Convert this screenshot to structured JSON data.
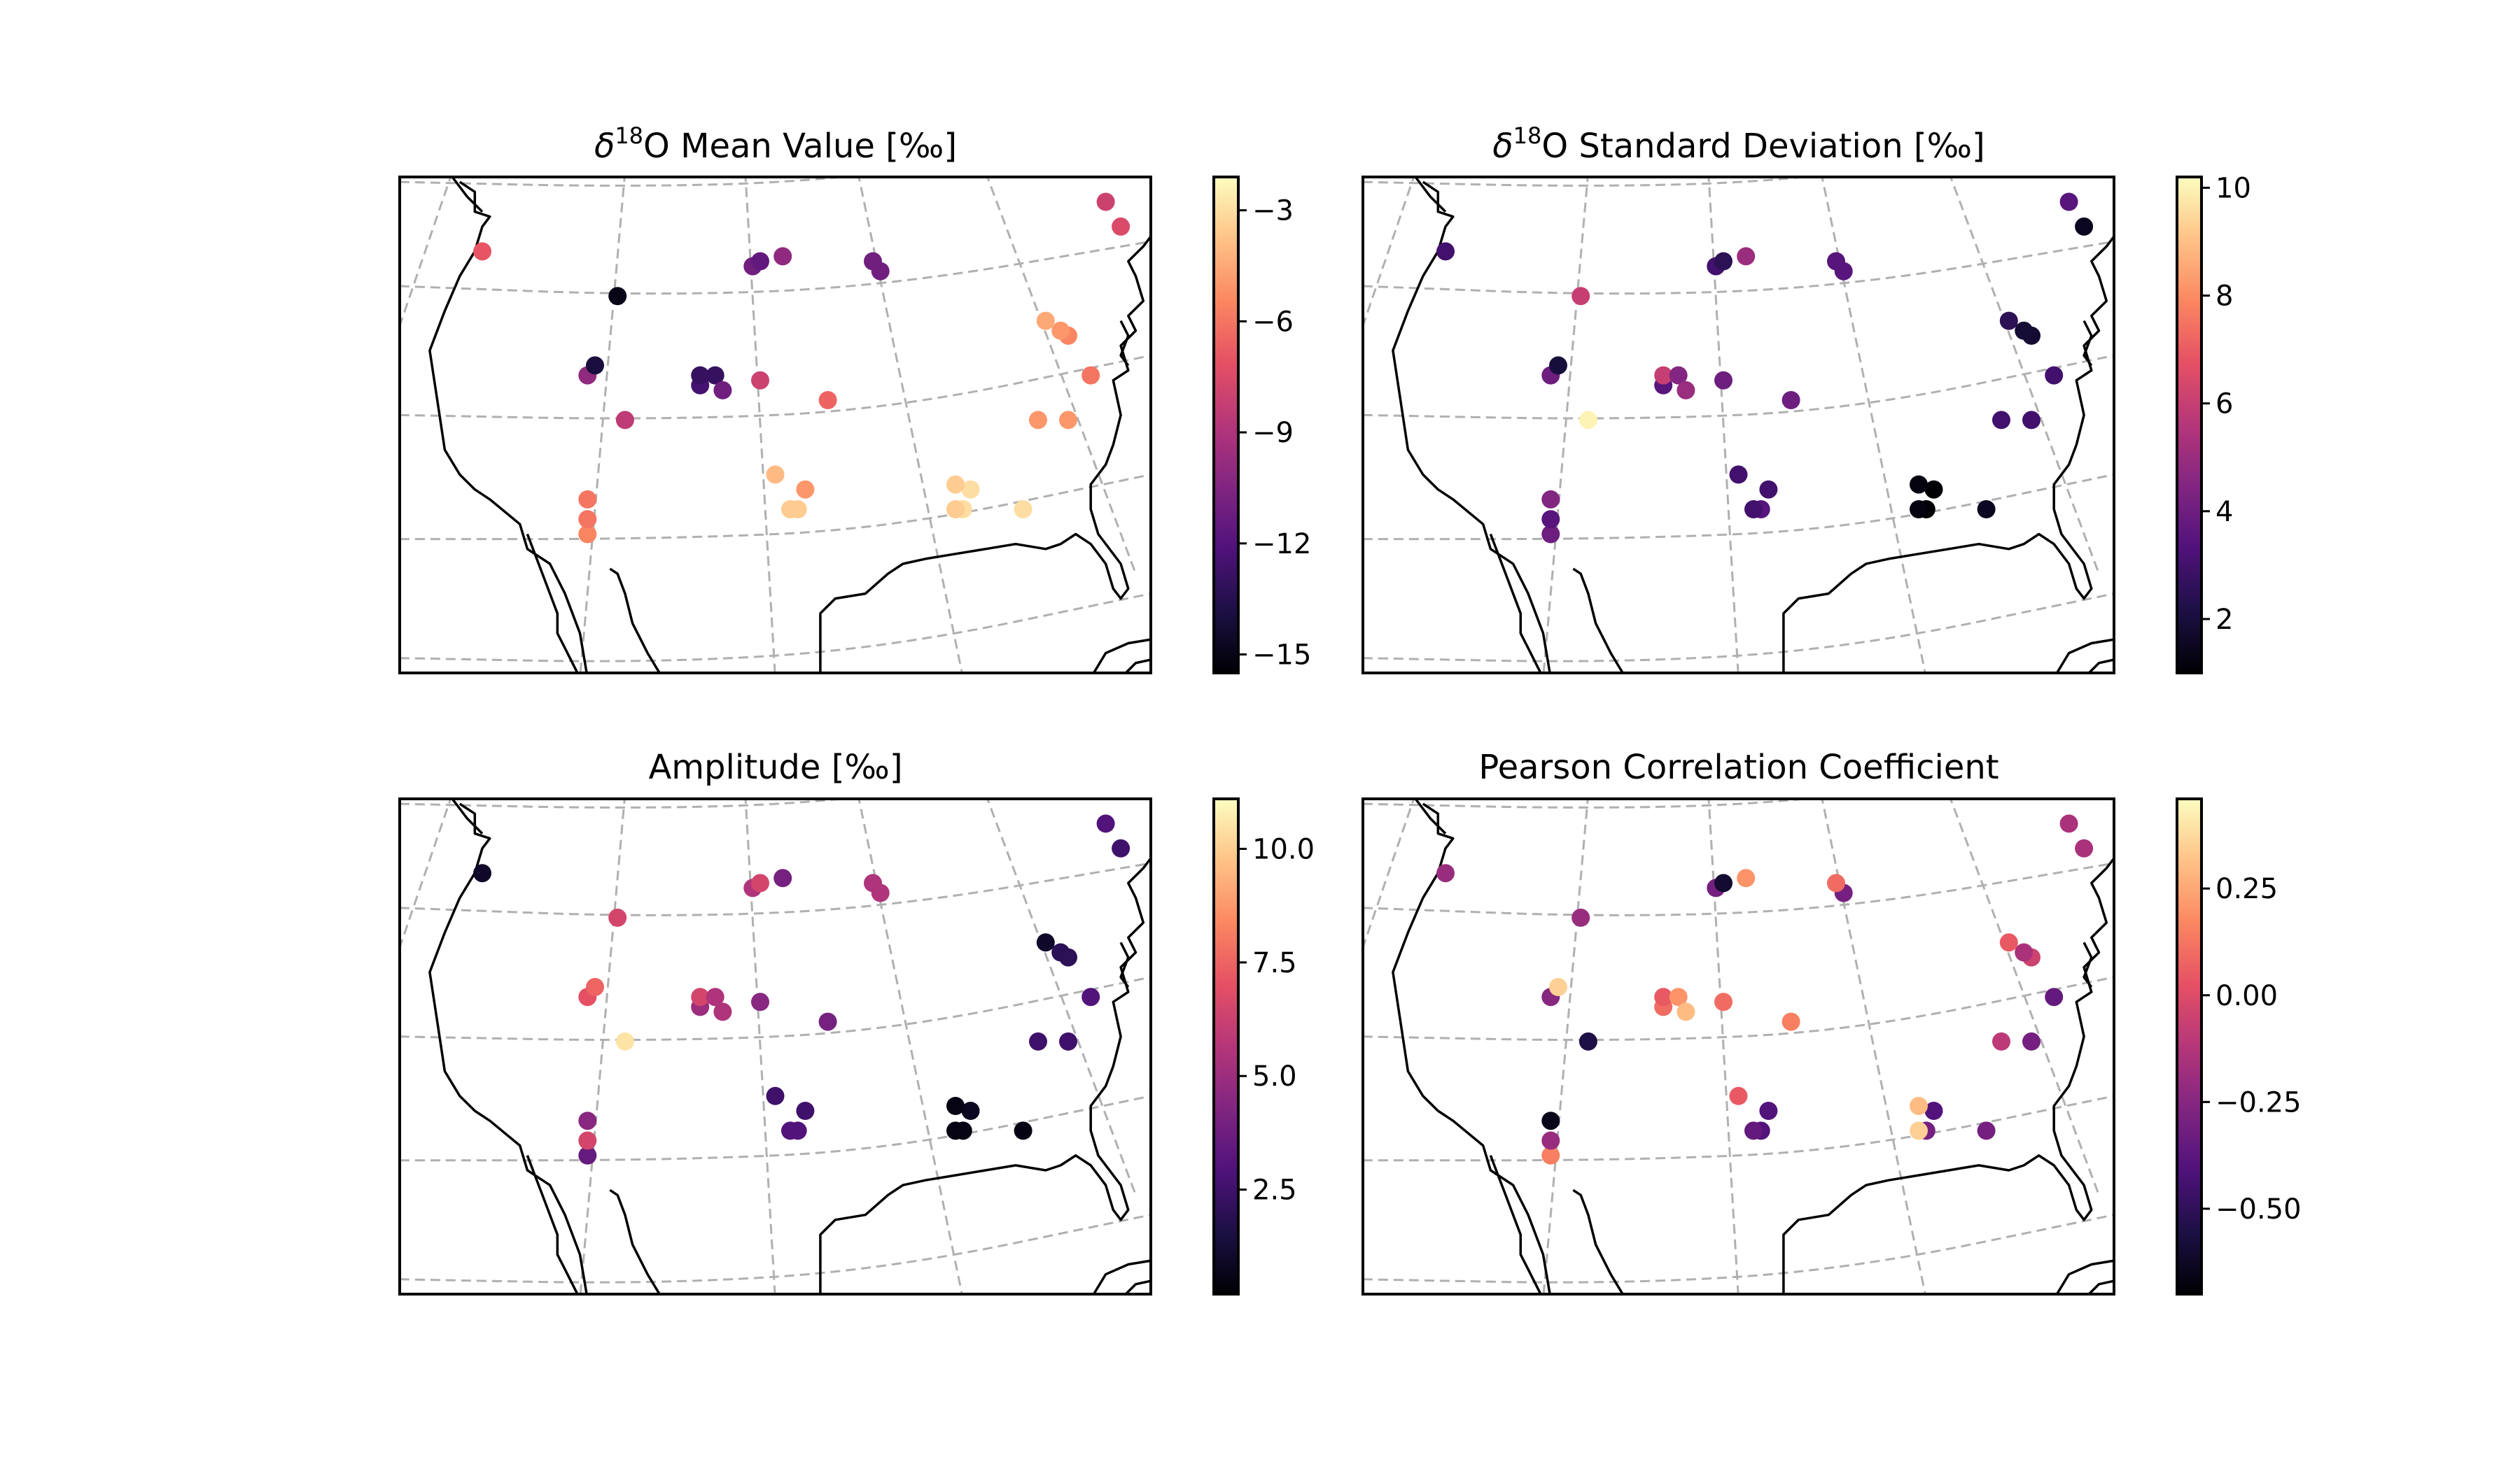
{
  "figure": {
    "background": "#ffffff"
  },
  "colormap": {
    "name": "magma",
    "stops": [
      "#000004",
      "#1c1044",
      "#4f127b",
      "#812581",
      "#b5367a",
      "#e55064",
      "#fb8761",
      "#fec287",
      "#fcfdbf"
    ]
  },
  "chart_data": [
    {
      "type": "scatter",
      "title_pre": "δ",
      "title_sup": "18",
      "title_post": "O Mean Value [‰]",
      "colorbar": {
        "range": [
          -15.5,
          -2.1
        ],
        "ticks": [
          -3,
          -6,
          -9,
          -12,
          -15
        ],
        "tick_labels": [
          "−3",
          "−6",
          "−9",
          "−12",
          "−15"
        ]
      },
      "x": [
        0.11,
        0.29,
        0.47,
        0.48,
        0.51,
        0.64,
        0.63,
        0.96,
        0.94,
        0.25,
        0.26,
        0.4,
        0.4,
        0.42,
        0.48,
        0.43,
        0.57,
        0.89,
        0.88,
        0.86,
        0.92,
        0.3,
        0.25,
        0.25,
        0.5,
        0.54,
        0.53,
        0.52,
        0.75,
        0.76,
        0.74,
        0.74,
        0.83,
        0.85,
        0.89,
        0.25
      ],
      "y": [
        0.85,
        0.76,
        0.82,
        0.83,
        0.84,
        0.81,
        0.83,
        0.9,
        0.95,
        0.6,
        0.62,
        0.58,
        0.6,
        0.6,
        0.59,
        0.57,
        0.55,
        0.68,
        0.69,
        0.71,
        0.6,
        0.51,
        0.35,
        0.28,
        0.4,
        0.37,
        0.33,
        0.33,
        0.33,
        0.37,
        0.38,
        0.33,
        0.33,
        0.51,
        0.51,
        0.31
      ],
      "values": [
        -7,
        -15,
        -11,
        -11.5,
        -10,
        -11,
        -11,
        -7.5,
        -8,
        -10,
        -14,
        -12.5,
        -13,
        -13,
        -8,
        -11,
        -6.5,
        -5.5,
        -5,
        -4.5,
        -6,
        -8.5,
        -6,
        -5.5,
        -4,
        -5,
        -3.5,
        -3.5,
        -3,
        -3,
        -3.5,
        -3.5,
        -3,
        -5,
        -5,
        -6
      ]
    },
    {
      "type": "scatter",
      "title_pre": "δ",
      "title_sup": "18",
      "title_post": "O Standard Deviation [‰]",
      "colorbar": {
        "range": [
          1.0,
          10.2
        ],
        "ticks": [
          10,
          8,
          6,
          4,
          2
        ],
        "tick_labels": [
          "10",
          "8",
          "6",
          "4",
          "2"
        ]
      },
      "x": [
        0.11,
        0.29,
        0.47,
        0.48,
        0.51,
        0.64,
        0.63,
        0.96,
        0.94,
        0.25,
        0.26,
        0.4,
        0.4,
        0.42,
        0.48,
        0.43,
        0.57,
        0.89,
        0.88,
        0.86,
        0.92,
        0.3,
        0.25,
        0.25,
        0.5,
        0.54,
        0.53,
        0.52,
        0.75,
        0.76,
        0.74,
        0.74,
        0.83,
        0.85,
        0.89,
        0.25
      ],
      "y": [
        0.85,
        0.76,
        0.82,
        0.83,
        0.84,
        0.81,
        0.83,
        0.9,
        0.95,
        0.6,
        0.62,
        0.58,
        0.6,
        0.6,
        0.59,
        0.57,
        0.55,
        0.68,
        0.69,
        0.71,
        0.6,
        0.51,
        0.35,
        0.28,
        0.4,
        0.37,
        0.33,
        0.33,
        0.33,
        0.37,
        0.38,
        0.33,
        0.33,
        0.51,
        0.51,
        0.31
      ],
      "values": [
        3,
        6,
        3,
        2.5,
        5,
        3.5,
        3.5,
        1.5,
        3.5,
        4,
        2,
        3.5,
        6,
        4.5,
        4,
        5,
        4,
        1.8,
        1.9,
        2.5,
        3,
        10,
        4.5,
        4,
        3,
        3,
        3.5,
        3,
        1,
        1,
        1.2,
        1.2,
        1.5,
        3,
        3,
        3.5
      ]
    },
    {
      "type": "scatter",
      "title": "Amplitude [‰]",
      "colorbar": {
        "range": [
          0.2,
          11.1
        ],
        "ticks": [
          10,
          7.5,
          5,
          2.5
        ],
        "tick_labels": [
          "10.0",
          "7.5",
          "5.0",
          "2.5"
        ]
      },
      "x": [
        0.11,
        0.29,
        0.47,
        0.48,
        0.51,
        0.64,
        0.63,
        0.96,
        0.94,
        0.25,
        0.26,
        0.4,
        0.4,
        0.42,
        0.48,
        0.43,
        0.57,
        0.89,
        0.88,
        0.86,
        0.92,
        0.3,
        0.25,
        0.25,
        0.5,
        0.54,
        0.53,
        0.52,
        0.75,
        0.76,
        0.74,
        0.74,
        0.83,
        0.85,
        0.89,
        0.25
      ],
      "y": [
        0.85,
        0.76,
        0.82,
        0.83,
        0.84,
        0.81,
        0.83,
        0.9,
        0.95,
        0.6,
        0.62,
        0.58,
        0.6,
        0.6,
        0.59,
        0.57,
        0.55,
        0.68,
        0.69,
        0.71,
        0.6,
        0.51,
        0.35,
        0.28,
        0.4,
        0.37,
        0.33,
        0.33,
        0.33,
        0.37,
        0.38,
        0.33,
        0.33,
        0.51,
        0.51,
        0.31
      ],
      "values": [
        1,
        6.5,
        5.5,
        6.5,
        4,
        5.5,
        5.5,
        2.5,
        3,
        7,
        7.5,
        5,
        6.5,
        5.5,
        4.5,
        5.5,
        4,
        2,
        2,
        1,
        3,
        10.5,
        4.5,
        3.5,
        2.5,
        2.5,
        3,
        3,
        0.5,
        0.8,
        0.5,
        0.5,
        0.5,
        2.5,
        2.5,
        6.5
      ]
    },
    {
      "type": "scatter",
      "title": "Pearson Correlation Coefficient",
      "colorbar": {
        "range": [
          -0.7,
          0.46
        ],
        "ticks": [
          0.25,
          0,
          -0.25,
          -0.5
        ],
        "tick_labels": [
          "0.25",
          "0.00",
          "−0.25",
          "−0.50"
        ]
      },
      "x": [
        0.11,
        0.29,
        0.47,
        0.48,
        0.51,
        0.64,
        0.63,
        0.96,
        0.94,
        0.25,
        0.26,
        0.4,
        0.4,
        0.42,
        0.48,
        0.43,
        0.57,
        0.89,
        0.88,
        0.86,
        0.92,
        0.3,
        0.25,
        0.25,
        0.5,
        0.54,
        0.53,
        0.52,
        0.75,
        0.76,
        0.74,
        0.74,
        0.83,
        0.85,
        0.89,
        0.25
      ],
      "y": [
        0.85,
        0.76,
        0.82,
        0.83,
        0.84,
        0.81,
        0.83,
        0.9,
        0.95,
        0.6,
        0.62,
        0.58,
        0.6,
        0.6,
        0.59,
        0.57,
        0.55,
        0.68,
        0.69,
        0.71,
        0.6,
        0.51,
        0.35,
        0.28,
        0.4,
        0.37,
        0.33,
        0.33,
        0.33,
        0.37,
        0.38,
        0.33,
        0.33,
        0.51,
        0.51,
        0.31
      ],
      "values": [
        -0.2,
        -0.2,
        -0.3,
        -0.6,
        0.2,
        -0.3,
        0.1,
        -0.15,
        -0.15,
        -0.25,
        0.35,
        0.1,
        0.05,
        0.2,
        0.1,
        0.3,
        0.15,
        -0.05,
        -0.15,
        0.05,
        -0.35,
        -0.55,
        -0.65,
        0.15,
        0.05,
        -0.4,
        -0.4,
        -0.35,
        -0.3,
        -0.4,
        0.3,
        0.35,
        -0.3,
        -0.1,
        -0.3,
        -0.2
      ]
    }
  ]
}
